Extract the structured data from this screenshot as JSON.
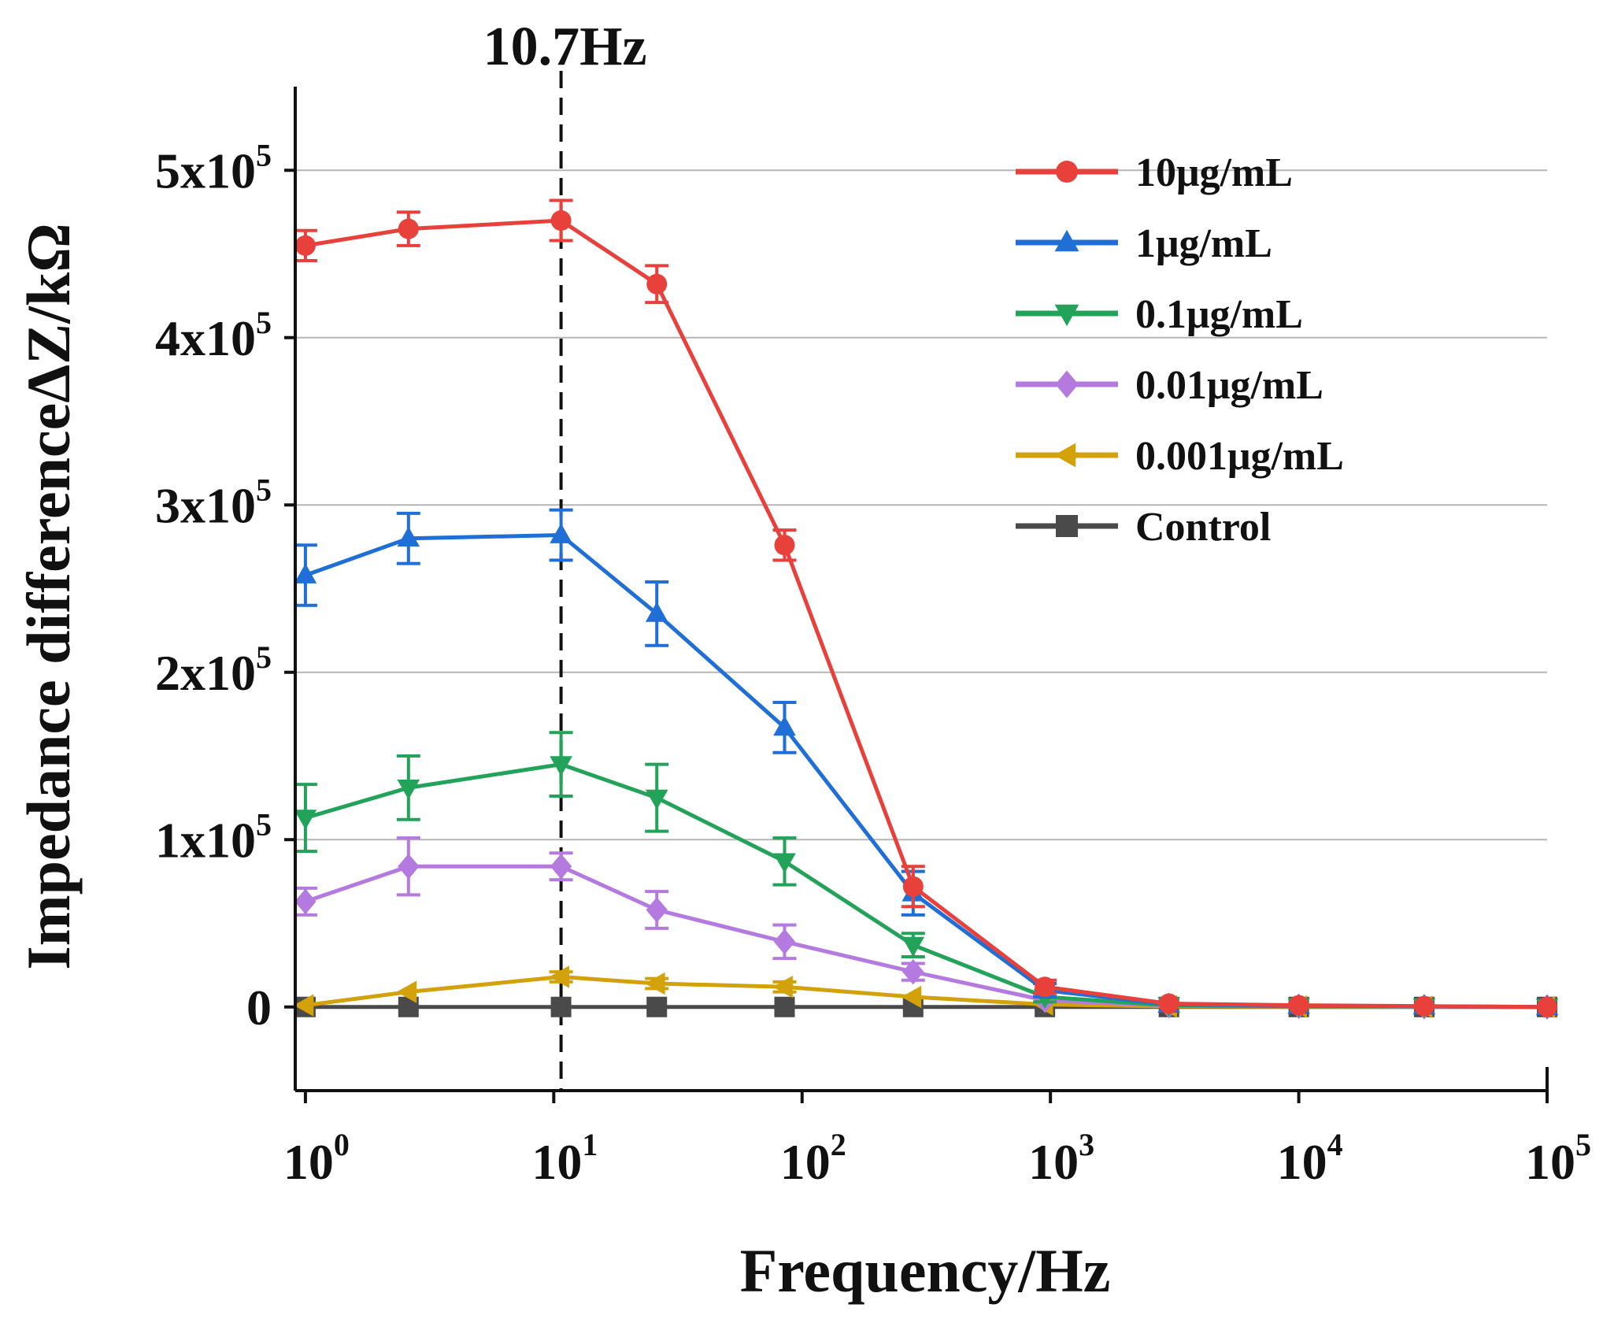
{
  "chart_data": {
    "type": "line",
    "title": "",
    "xlabel": "Frequency/Hz",
    "ylabel": "Impedance differenceΔZ/kΩ",
    "xscale": "log",
    "xlim": [
      0.91,
      100000
    ],
    "ylim": [
      -50000,
      550000
    ],
    "grid": "horizontal",
    "legend_position": "top-right",
    "x_ticks": [
      {
        "base": "10",
        "exp": "0",
        "value": 1
      },
      {
        "base": "10",
        "exp": "1",
        "value": 10
      },
      {
        "base": "10",
        "exp": "2",
        "value": 100
      },
      {
        "base": "10",
        "exp": "3",
        "value": 1000
      },
      {
        "base": "10",
        "exp": "4",
        "value": 10000
      },
      {
        "base": "10",
        "exp": "5",
        "value": 100000
      }
    ],
    "y_ticks": [
      {
        "label": "0",
        "base": "",
        "exp": "",
        "value": 0
      },
      {
        "label": "",
        "base": "1x10",
        "exp": "5",
        "value": 100000
      },
      {
        "label": "",
        "base": "2x10",
        "exp": "5",
        "value": 200000
      },
      {
        "label": "",
        "base": "3x10",
        "exp": "5",
        "value": 300000
      },
      {
        "label": "",
        "base": "4x10",
        "exp": "5",
        "value": 400000
      },
      {
        "label": "",
        "base": "5x10",
        "exp": "5",
        "value": 500000
      }
    ],
    "annotation": {
      "label": "10.7Hz",
      "x": 10.7
    },
    "x": [
      1,
      2.6,
      10.7,
      26,
      85,
      280,
      950,
      3000,
      10000,
      32000,
      100000
    ],
    "series": [
      {
        "name": "10μg/mL",
        "color": "#e8413c",
        "marker": "circle",
        "values": [
          455000,
          465000,
          470000,
          432000,
          276000,
          72000,
          12000,
          2000,
          1000,
          500,
          0
        ],
        "errors": [
          9000,
          10000,
          12000,
          11000,
          9000,
          12000,
          4000,
          1000,
          500,
          500,
          0
        ]
      },
      {
        "name": "1μg/mL",
        "color": "#1f6fd6",
        "marker": "triangle-up",
        "values": [
          258000,
          280000,
          282000,
          235000,
          167000,
          68000,
          10000,
          1500,
          800,
          400,
          0
        ],
        "errors": [
          18000,
          15000,
          15000,
          19000,
          15000,
          13000,
          4000,
          1000,
          500,
          500,
          0
        ]
      },
      {
        "name": "0.1μg/mL",
        "color": "#23a35a",
        "marker": "triangle-down",
        "values": [
          113000,
          131000,
          145000,
          125000,
          87000,
          37000,
          6000,
          1000,
          500,
          300,
          0
        ],
        "errors": [
          20000,
          19000,
          19000,
          20000,
          14000,
          7000,
          3000,
          1000,
          500,
          300,
          0
        ]
      },
      {
        "name": "0.01μg/mL",
        "color": "#b57ae0",
        "marker": "diamond",
        "values": [
          63000,
          84000,
          84000,
          58000,
          39000,
          21000,
          4000,
          800,
          400,
          200,
          0
        ],
        "errors": [
          8000,
          17000,
          8000,
          11000,
          10000,
          5000,
          2000,
          500,
          300,
          200,
          0
        ]
      },
      {
        "name": "0.001μg/mL",
        "color": "#d3a10a",
        "marker": "triangle-left",
        "values": [
          1000,
          9000,
          18000,
          14000,
          12000,
          6000,
          1500,
          300,
          200,
          100,
          0
        ],
        "errors": [
          1000,
          2000,
          3000,
          3000,
          3000,
          2000,
          1000,
          300,
          200,
          100,
          0
        ]
      },
      {
        "name": "Control",
        "color": "#4a4a4a",
        "marker": "square",
        "values": [
          0,
          0,
          0,
          0,
          0,
          0,
          0,
          0,
          0,
          0,
          0
        ],
        "errors": [
          0,
          0,
          0,
          0,
          0,
          0,
          0,
          0,
          0,
          0,
          0
        ]
      }
    ]
  }
}
